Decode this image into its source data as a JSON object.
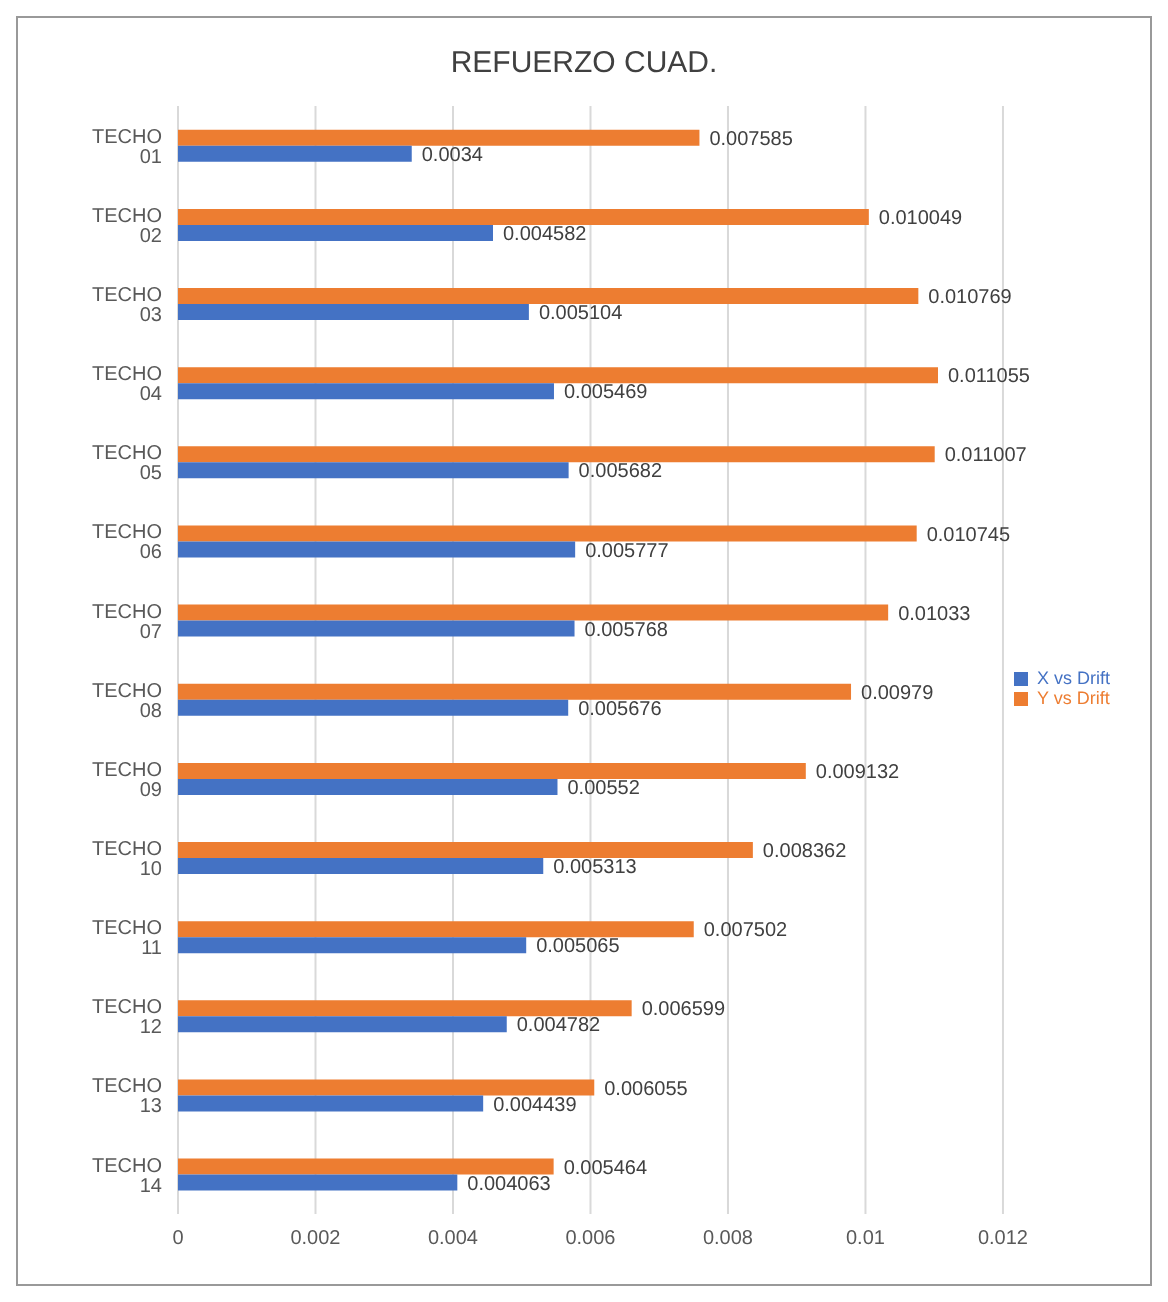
{
  "chart_data": {
    "type": "bar",
    "orientation": "horizontal",
    "title": "REFUERZO CUAD.",
    "categories": [
      "TECHO 01",
      "TECHO 02",
      "TECHO 03",
      "TECHO 04",
      "TECHO 05",
      "TECHO 06",
      "TECHO 07",
      "TECHO 08",
      "TECHO 09",
      "TECHO 10",
      "TECHO 11",
      "TECHO 12",
      "TECHO 13",
      "TECHO 14"
    ],
    "series": [
      {
        "name": "Y vs Drift",
        "color": "#ed7d31",
        "values": [
          0.007585,
          0.010049,
          0.010769,
          0.011055,
          0.011007,
          0.010745,
          0.01033,
          0.00979,
          0.009132,
          0.008362,
          0.007502,
          0.006599,
          0.006055,
          0.005464
        ]
      },
      {
        "name": "X vs Drift",
        "color": "#4472c4",
        "values": [
          0.0034,
          0.004582,
          0.005104,
          0.005469,
          0.005682,
          0.005777,
          0.005768,
          0.005676,
          0.00552,
          0.005313,
          0.005065,
          0.004782,
          0.004439,
          0.004063
        ]
      }
    ],
    "xlim": [
      0,
      0.012
    ],
    "xticks": [
      0,
      0.002,
      0.004,
      0.006,
      0.008,
      0.01,
      0.012
    ],
    "grid": "x",
    "legend": "right",
    "data_labels": true
  }
}
